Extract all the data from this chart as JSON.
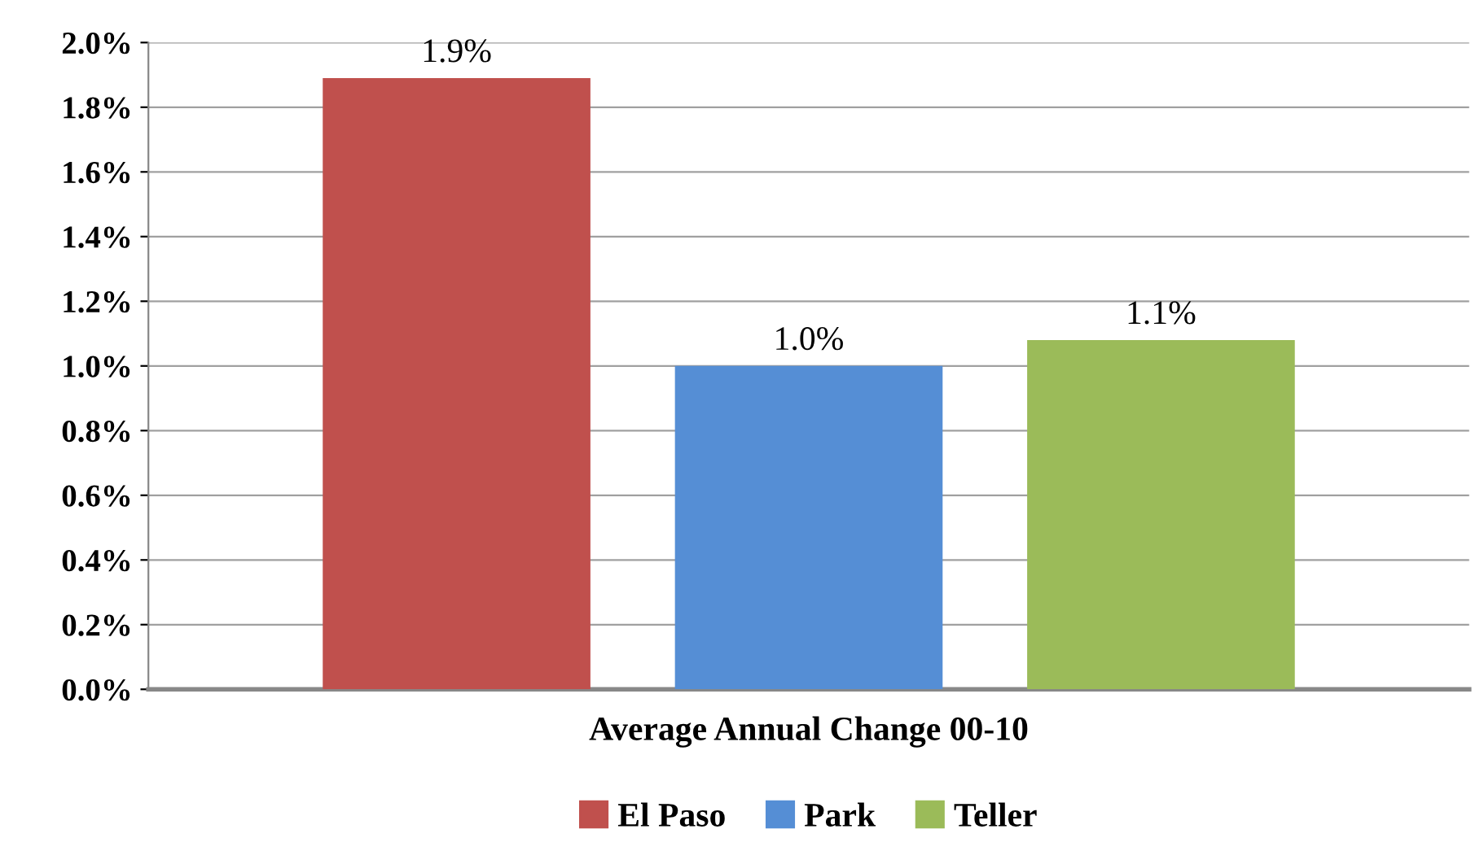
{
  "chart_data": {
    "type": "bar",
    "categories": [
      "Average Annual Change 00-10"
    ],
    "series": [
      {
        "name": "El Paso",
        "color": "#c0504d",
        "values": [
          1.89
        ],
        "value_labels": [
          "1.9%"
        ]
      },
      {
        "name": "Park",
        "color": "#558ed5",
        "values": [
          1.0
        ],
        "value_labels": [
          "1.0%"
        ]
      },
      {
        "name": "Teller",
        "color": "#9bbb59",
        "values": [
          1.08
        ],
        "value_labels": [
          "1.1%"
        ]
      }
    ],
    "ylim": [
      0,
      2.0
    ],
    "yticks": [
      {
        "value": 0,
        "label": "0.0%"
      },
      {
        "value": 0.2,
        "label": "0.2%"
      },
      {
        "value": 0.4,
        "label": "0.4%"
      },
      {
        "value": 0.6,
        "label": "0.6%"
      },
      {
        "value": 0.8,
        "label": "0.8%"
      },
      {
        "value": 1.0,
        "label": "1.0%"
      },
      {
        "value": 1.2,
        "label": "1.2%"
      },
      {
        "value": 1.4,
        "label": "1.4%"
      },
      {
        "value": 1.6,
        "label": "1.6%"
      },
      {
        "value": 1.8,
        "label": "1.8%"
      },
      {
        "value": 2.0,
        "label": "2.0%"
      }
    ],
    "grid": "y",
    "legend": "bottom"
  }
}
